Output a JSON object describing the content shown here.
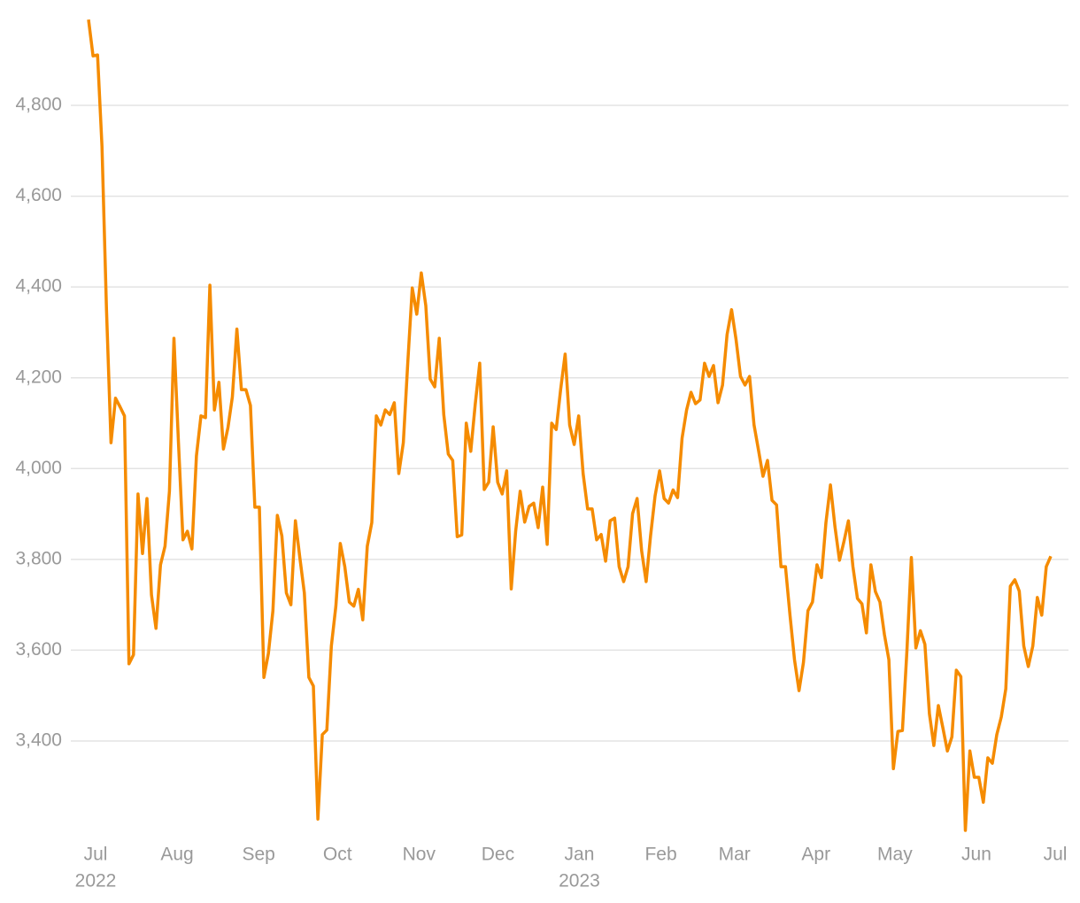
{
  "chart_data": {
    "type": "line",
    "color": "#f58b00",
    "values": [
      4989,
      4909,
      4911,
      4710,
      4350,
      4057,
      4155,
      4136,
      4116,
      3570,
      3590,
      3944,
      3813,
      3934,
      3722,
      3648,
      3788,
      3829,
      3950,
      4287,
      4057,
      3843,
      3862,
      3823,
      4028,
      4116,
      4112,
      4404,
      4129,
      4190,
      4043,
      4090,
      4158,
      4307,
      4174,
      4174,
      4139,
      3915,
      3915,
      3540,
      3593,
      3687,
      3897,
      3852,
      3726,
      3700,
      3885,
      3804,
      3726,
      3540,
      3521,
      3228,
      3414,
      3424,
      3609,
      3697,
      3835,
      3784,
      3706,
      3697,
      3734,
      3667,
      3829,
      3881,
      4116,
      4096,
      4129,
      4119,
      4145,
      3989,
      4057,
      4232,
      4398,
      4340,
      4431,
      4359,
      4197,
      4180,
      4287,
      4119,
      4032,
      4018,
      3850,
      3854,
      4100,
      4038,
      4141,
      4232,
      3954,
      3970,
      4092,
      3970,
      3944,
      3995,
      3735,
      3862,
      3950,
      3882,
      3917,
      3924,
      3870,
      3959,
      3833,
      4100,
      4086,
      4174,
      4252,
      4096,
      4053,
      4116,
      3989,
      3911,
      3911,
      3843,
      3855,
      3796,
      3885,
      3891,
      3784,
      3751,
      3784,
      3901,
      3934,
      3819,
      3751,
      3852,
      3940,
      3995,
      3934,
      3924,
      3953,
      3936,
      4067,
      4129,
      4168,
      4143,
      4151,
      4232,
      4203,
      4227,
      4145,
      4184,
      4295,
      4350,
      4285,
      4203,
      4184,
      4203,
      4096,
      4041,
      3983,
      4018,
      3930,
      3920,
      3784,
      3784,
      3677,
      3579,
      3511,
      3573,
      3687,
      3706,
      3788,
      3760,
      3881,
      3964,
      3872,
      3798,
      3839,
      3885,
      3784,
      3714,
      3702,
      3638,
      3788,
      3729,
      3706,
      3634,
      3579,
      3339,
      3421,
      3423,
      3599,
      3804,
      3605,
      3643,
      3613,
      3460,
      3390,
      3478,
      3429,
      3378,
      3409,
      3556,
      3542,
      3203,
      3378,
      3320,
      3320,
      3265,
      3363,
      3351,
      3414,
      3453,
      3515,
      3741,
      3755,
      3730,
      3609,
      3564,
      3609,
      3716,
      3677,
      3784,
      3807
    ],
    "ylim": [
      3190,
      4995
    ],
    "yticks": [
      {
        "value": 3400,
        "label": "3,400"
      },
      {
        "value": 3600,
        "label": "3,600"
      },
      {
        "value": 3800,
        "label": "3,800"
      },
      {
        "value": 4000,
        "label": "4,000"
      },
      {
        "value": 4200,
        "label": "4,200"
      },
      {
        "value": 4400,
        "label": "4,400"
      },
      {
        "value": 4600,
        "label": "4,600"
      },
      {
        "value": 4800,
        "label": "4,800"
      }
    ],
    "xticks": [
      {
        "value": "2022-07",
        "label": "Jul"
      },
      {
        "value": "2022-08",
        "label": "Aug"
      },
      {
        "value": "2022-09",
        "label": "Sep"
      },
      {
        "value": "2022-10",
        "label": "Oct"
      },
      {
        "value": "2022-11",
        "label": "Nov"
      },
      {
        "value": "2022-12",
        "label": "Dec"
      },
      {
        "value": "2023-01",
        "label": "Jan"
      },
      {
        "value": "2023-02",
        "label": "Feb"
      },
      {
        "value": "2023-03",
        "label": "Mar"
      },
      {
        "value": "2023-04",
        "label": "Apr"
      },
      {
        "value": "2023-05",
        "label": "May"
      },
      {
        "value": "2023-06",
        "label": "Jun"
      },
      {
        "value": "2023-07",
        "label": "Jul"
      }
    ],
    "xtick_years": [
      {
        "value": "2022-07",
        "label": "2022"
      },
      {
        "value": "2023-01",
        "label": "2023"
      }
    ],
    "grid": true
  }
}
